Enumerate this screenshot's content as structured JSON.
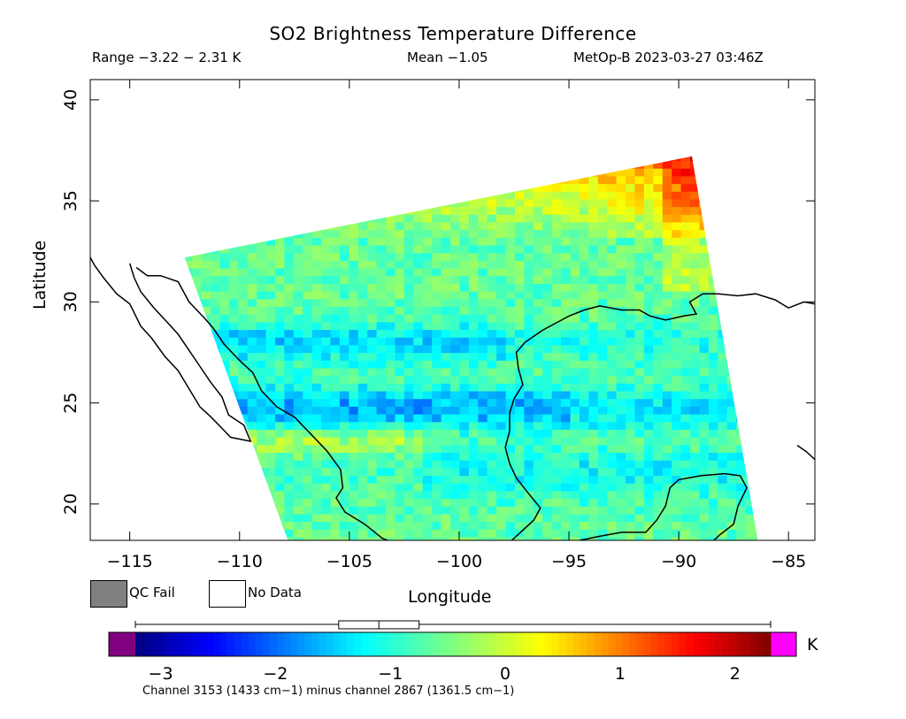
{
  "header": {
    "title": "SO2 Brightness Temperature Difference",
    "range": "Range −3.22 − 2.31 K",
    "mean": "Mean −1.05",
    "stamp": "MetOp-B 2023-03-27 03:46Z"
  },
  "chart_data": {
    "type": "heatmap",
    "xlabel": "Longitude",
    "ylabel": "Latitude",
    "xlim": [
      -116.8,
      -83.8
    ],
    "ylim": [
      18.2,
      41
    ],
    "x_ticks": [
      -115,
      -110,
      -105,
      -100,
      -95,
      -90,
      -85
    ],
    "x_tick_labels": [
      "−115",
      "−110",
      "−105",
      "−100",
      "−95",
      "−90",
      "−85"
    ],
    "y_ticks": [
      20,
      25,
      30,
      35,
      40
    ],
    "y_tick_labels": [
      "20",
      "25",
      "30",
      "35",
      "40"
    ],
    "swath_corners": [
      [
        -112.5,
        32.2
      ],
      [
        -89.4,
        37.2
      ],
      [
        -86.4,
        18.2
      ],
      [
        -107.8,
        18.2
      ]
    ],
    "colorbar": {
      "vmin": -3.22,
      "vmax": 2.31,
      "ticks": [
        -3,
        -2,
        -1,
        0,
        1,
        2
      ],
      "tick_labels": [
        "−3",
        "−2",
        "−1",
        "0",
        "1",
        "2"
      ],
      "unit": "K",
      "under_color": "#800080",
      "over_color": "#ff00ff",
      "box_whisker": {
        "min": -3.22,
        "q1": -1.45,
        "median": -1.1,
        "q3": -0.75,
        "max": 2.31
      }
    },
    "legend": [
      {
        "label": "QC Fail",
        "color": "#808080"
      },
      {
        "label": "No Data",
        "color": "#ffffff"
      }
    ],
    "footer": "Channel 3153 (1433 cm−1) minus channel 2867 (1361.5 cm−1)"
  }
}
